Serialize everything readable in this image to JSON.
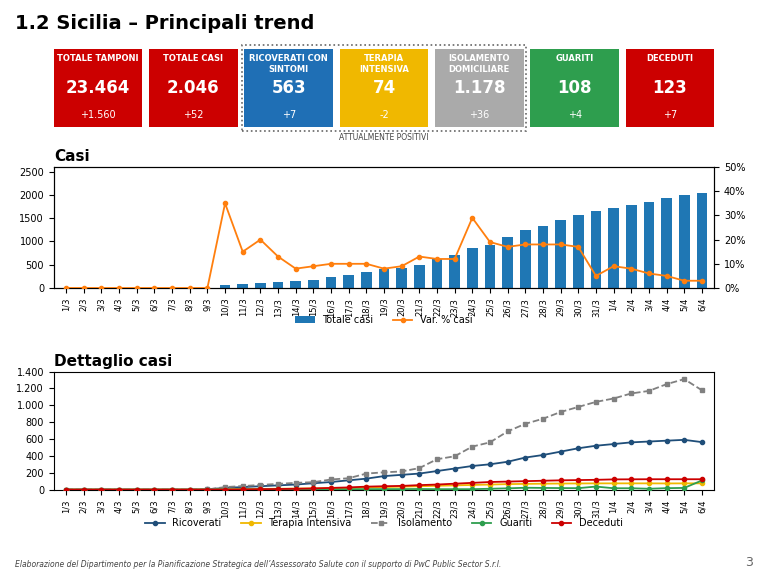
{
  "chart_data": [
    {
      "type": "cards",
      "title": "1.2 Sicilia – Principali trend",
      "categories": [
        "TOTALE TAMPONI",
        "TOTALE CASI",
        "RICOVERATI CON\nSINTOMI",
        "TERAPIA\nINTENSIVA",
        "ISOLAMENTO\nDOMICILIARE",
        "GUARITI",
        "DECEDUTI"
      ],
      "values": [
        23464,
        2046,
        563,
        74,
        1178,
        108,
        123
      ],
      "value_labels": [
        "23.464",
        "2.046",
        "563",
        "74",
        "1.178",
        "108",
        "123"
      ],
      "deltas": [
        1560,
        52,
        7,
        -2,
        36,
        4,
        7
      ],
      "delta_labels": [
        "+1.560",
        "+52",
        "+7",
        "-2",
        "+36",
        "+4",
        "+7"
      ],
      "colors": [
        "#cc0000",
        "#cc0000",
        "#1f6fb5",
        "#f0b800",
        "#aaaaaa",
        "#2e9e4e",
        "#cc0000"
      ],
      "groups": [
        {
          "label": "ATTUALMENTE POSITIVI",
          "members": [
            "RICOVERATI CON\nSINTOMI",
            "TERAPIA\nINTENSIVA",
            "ISOLAMENTO\nDOMICILIARE"
          ]
        }
      ],
      "annotations": [
        "Elaborazione del Dipartimento per la Pianificazione Strategica dell’Assessorato Salute con il supporto di PwC Public Sector S.r.l.",
        "3"
      ]
    },
    {
      "type": "bar",
      "title": "Casi",
      "categories": [
        "1/3",
        "2/3",
        "3/3",
        "4/3",
        "5/3",
        "6/3",
        "7/3",
        "8/3",
        "9/3",
        "10/3",
        "11/3",
        "12/3",
        "13/3",
        "14/3",
        "15/3",
        "16/3",
        "17/3",
        "18/3",
        "19/3",
        "20/3",
        "21/3",
        "22/3",
        "23/3",
        "24/3",
        "25/3",
        "26/3",
        "27/3",
        "28/3",
        "29/3",
        "30/3",
        "31/3",
        "1/4",
        "2/4",
        "3/4",
        "4/4",
        "5/4",
        "6/4"
      ],
      "series": [
        {
          "name": "Totale casi",
          "type": "bar",
          "values": [
            0,
            0,
            0,
            0,
            0,
            0,
            0,
            0,
            3,
            55,
            80,
            105,
            130,
            155,
            180,
            230,
            270,
            350,
            400,
            430,
            490,
            630,
            700,
            850,
            930,
            1100,
            1250,
            1340,
            1460,
            1560,
            1650,
            1710,
            1790,
            1850,
            1940,
            2000,
            2046
          ]
        },
        {
          "name": "Var. % casi",
          "type": "line",
          "axis": "y2",
          "marker": "o",
          "line_style": "solid",
          "values": [
            0,
            0,
            0,
            0,
            0,
            0,
            0,
            0,
            0,
            35,
            15,
            20,
            13,
            8,
            9,
            10,
            10,
            10,
            8,
            9,
            13,
            12,
            12,
            29,
            19,
            17,
            18,
            18,
            18,
            17,
            5,
            9,
            8,
            6,
            5,
            3,
            3
          ]
        }
      ],
      "ylim": [
        0,
        2600
      ],
      "yticks": [
        0,
        500,
        1000,
        1500,
        2000,
        2500
      ],
      "y2lim": [
        0,
        50
      ],
      "y2ticks": [
        {
          "value": 0,
          "label": "0%"
        },
        {
          "value": 10,
          "label": "10%"
        },
        {
          "value": 20,
          "label": "20%"
        },
        {
          "value": 30,
          "label": "30%"
        },
        {
          "value": 40,
          "label": "40%"
        },
        {
          "value": 50,
          "label": "50%"
        }
      ],
      "grid": false,
      "legend": "lower center"
    },
    {
      "type": "line",
      "title": "Dettaglio casi",
      "categories": [
        "1/3",
        "2/3",
        "3/3",
        "4/3",
        "5/3",
        "6/3",
        "7/3",
        "8/3",
        "9/3",
        "10/3",
        "11/3",
        "12/3",
        "13/3",
        "14/3",
        "15/3",
        "16/3",
        "17/3",
        "18/3",
        "19/3",
        "20/3",
        "21/3",
        "22/3",
        "23/3",
        "24/3",
        "25/3",
        "26/3",
        "27/3",
        "28/3",
        "29/3",
        "30/3",
        "31/3",
        "1/4",
        "2/4",
        "3/4",
        "4/4",
        "5/4",
        "6/4"
      ],
      "series": [
        {
          "name": "Ricoverati",
          "color": "#1f4e79",
          "marker": "o",
          "line_style": "solid",
          "values": [
            0,
            0,
            0,
            0,
            0,
            0,
            0,
            0,
            3,
            20,
            30,
            40,
            50,
            60,
            75,
            90,
            110,
            130,
            160,
            175,
            190,
            220,
            250,
            280,
            300,
            330,
            380,
            410,
            450,
            490,
            520,
            540,
            560,
            570,
            580,
            590,
            563
          ]
        },
        {
          "name": "Terapia Intensiva",
          "color": "#f0b800",
          "marker": "o",
          "line_style": "solid",
          "values": [
            0,
            0,
            0,
            0,
            0,
            0,
            0,
            0,
            1,
            4,
            6,
            8,
            10,
            12,
            14,
            17,
            20,
            25,
            30,
            35,
            40,
            45,
            50,
            55,
            60,
            65,
            68,
            70,
            72,
            73,
            74,
            74,
            74,
            74,
            73,
            74,
            74
          ]
        },
        {
          "name": "Isolamento",
          "color": "#808080",
          "marker": "s",
          "line_style": "dashed",
          "values": [
            0,
            0,
            0,
            0,
            0,
            0,
            0,
            0,
            2,
            30,
            42,
            55,
            68,
            80,
            88,
            120,
            135,
            190,
            205,
            215,
            255,
            360,
            395,
            510,
            560,
            690,
            780,
            840,
            920,
            980,
            1040,
            1080,
            1140,
            1170,
            1250,
            1310,
            1178
          ]
        },
        {
          "name": "Guariti",
          "color": "#2e9e4e",
          "marker": "o",
          "line_style": "solid",
          "values": [
            0,
            0,
            0,
            0,
            0,
            0,
            0,
            0,
            0,
            1,
            2,
            2,
            3,
            3,
            3,
            3,
            4,
            5,
            6,
            6,
            7,
            5,
            5,
            5,
            10,
            15,
            22,
            20,
            18,
            17,
            36,
            16,
            16,
            10,
            17,
            20,
            108
          ]
        },
        {
          "name": "Deceduti",
          "color": "#cc0000",
          "marker": "o",
          "line_style": "solid",
          "values": [
            0,
            0,
            0,
            0,
            0,
            0,
            0,
            0,
            0,
            0,
            2,
            5,
            7,
            10,
            14,
            20,
            26,
            35,
            40,
            44,
            53,
            60,
            70,
            80,
            90,
            95,
            100,
            105,
            110,
            113,
            116,
            121,
            122,
            123,
            123,
            123,
            123
          ]
        }
      ],
      "ylim": [
        0,
        1400
      ],
      "yticks": [
        0,
        200,
        400,
        600,
        800,
        {
          "value": 1000,
          "label": "1.000"
        },
        {
          "value": 1200,
          "label": "1.200"
        },
        {
          "value": 1400,
          "label": "1.400"
        }
      ],
      "grid": false,
      "legend": "lower center"
    }
  ]
}
